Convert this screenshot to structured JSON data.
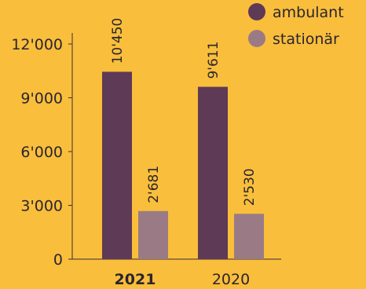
{
  "colors": {
    "background": "#F9BE3B",
    "ambulant": "#5E3A56",
    "stationaer": "#9A7B85",
    "text": "#2B2530",
    "axis": "#3A2F38"
  },
  "chart_data": {
    "type": "bar",
    "categories": [
      "2021",
      "2020"
    ],
    "category_bold": [
      true,
      false
    ],
    "series": [
      {
        "name": "ambulant",
        "values": [
          10450,
          9611
        ],
        "labels": [
          "10'450",
          "9'611"
        ],
        "color": "#5E3A56"
      },
      {
        "name": "stationär",
        "values": [
          2681,
          2530
        ],
        "labels": [
          "2'681",
          "2'530"
        ],
        "color": "#9A7B85"
      }
    ],
    "yticks": [
      0,
      3000,
      6000,
      9000,
      12000
    ],
    "ytick_labels": [
      "0",
      "3'000",
      "6'000",
      "9'000",
      "12'000"
    ],
    "ylim": [
      0,
      12000
    ],
    "legend_position": "top-right",
    "grid": false
  }
}
